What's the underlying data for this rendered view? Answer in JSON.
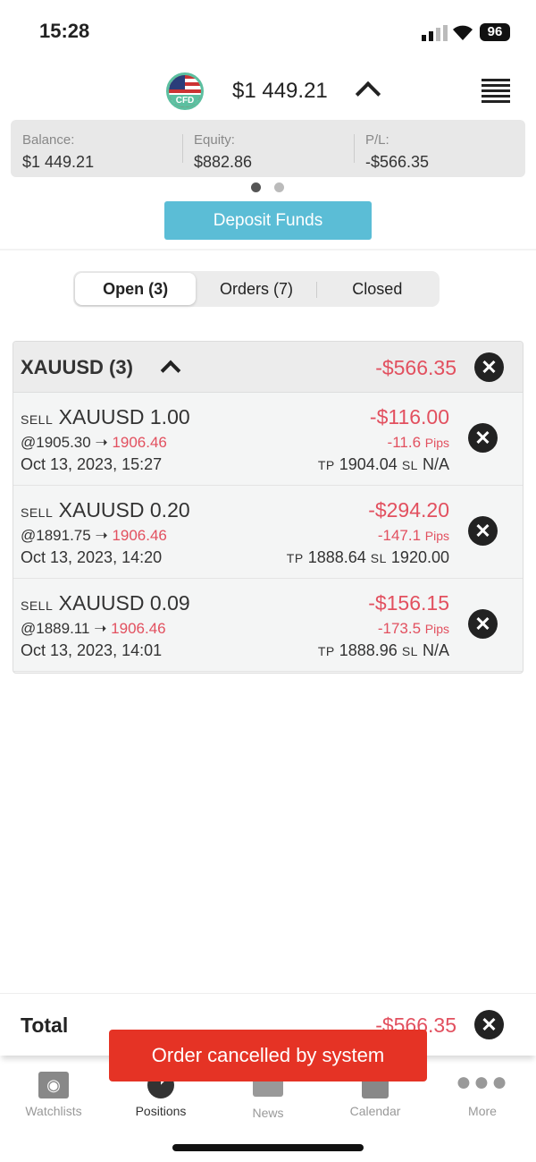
{
  "status": {
    "time": "15:28",
    "battery": "96"
  },
  "header": {
    "flag_label": "CFD",
    "balance": "$1 449.21"
  },
  "summary": [
    {
      "label": "Balance:",
      "value": "$1 449.21"
    },
    {
      "label": "Equity:",
      "value": "$882.86"
    },
    {
      "label": "P/L:",
      "value": "-$566.35"
    }
  ],
  "pager": {
    "current": 1,
    "total": 2
  },
  "deposit_label": "Deposit Funds",
  "tabs": [
    "Open (3)",
    "Orders (7)",
    "Closed"
  ],
  "group": {
    "title": "XAUUSD (3)",
    "pl": "-$566.35"
  },
  "positions": [
    {
      "side": "SELL",
      "symbol": "XAUUSD 1.00",
      "open": "@1905.30",
      "arrow": "➝",
      "current": "1906.46",
      "date": "Oct 13, 2023, 15:27",
      "pl": "-$116.00",
      "pips": "-11.6",
      "pips_unit": "Pips",
      "tp_label": "TP",
      "tp": "1904.04",
      "sl_label": "SL",
      "sl": "N/A"
    },
    {
      "side": "SELL",
      "symbol": "XAUUSD 0.20",
      "open": "@1891.75",
      "arrow": "➝",
      "current": "1906.46",
      "date": "Oct 13, 2023, 14:20",
      "pl": "-$294.20",
      "pips": "-147.1",
      "pips_unit": "Pips",
      "tp_label": "TP",
      "tp": "1888.64",
      "sl_label": "SL",
      "sl": "1920.00"
    },
    {
      "side": "SELL",
      "symbol": "XAUUSD 0.09",
      "open": "@1889.11",
      "arrow": "➝",
      "current": "1906.46",
      "date": "Oct 13, 2023, 14:01",
      "pl": "-$156.15",
      "pips": "-173.5",
      "pips_unit": "Pips",
      "tp_label": "TP",
      "tp": "1888.96",
      "sl_label": "SL",
      "sl": "N/A"
    }
  ],
  "total": {
    "label": "Total",
    "value": "-$566.35"
  },
  "toast": "Order cancelled by system",
  "nav": [
    {
      "label": "Watchlists",
      "icon": "eye-icon"
    },
    {
      "label": "Positions",
      "icon": "pie-chart-icon",
      "active": true
    },
    {
      "label": "News",
      "icon": "newspaper-icon"
    },
    {
      "label": "Calendar",
      "icon": "calendar-icon"
    },
    {
      "label": "More",
      "icon": "more-dots-icon"
    }
  ],
  "colors": {
    "accent": "#5bbdd6",
    "loss": "#e2505f",
    "toast": "#e53325"
  }
}
